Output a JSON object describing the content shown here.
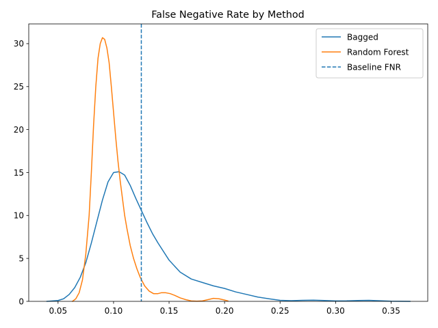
{
  "chart_data": {
    "type": "line",
    "title": "False Negative Rate by Method",
    "xlabel": "",
    "ylabel": "",
    "xlim": [
      0.0236,
      0.383
    ],
    "ylim": [
      0,
      32.3
    ],
    "xticks": [
      0.05,
      0.1,
      0.15,
      0.2,
      0.25,
      0.3,
      0.35
    ],
    "xtick_labels": [
      "0.05",
      "0.10",
      "0.15",
      "0.20",
      "0.25",
      "0.30",
      "0.35"
    ],
    "yticks": [
      0,
      5,
      10,
      15,
      20,
      25,
      30
    ],
    "ytick_labels": [
      "0",
      "5",
      "10",
      "15",
      "20",
      "25",
      "30"
    ],
    "grid": false,
    "legend_position": "top-right",
    "series": [
      {
        "name": "Bagged",
        "color": "#1f77b4",
        "style": "solid",
        "x": [
          0.04,
          0.05,
          0.055,
          0.06,
          0.065,
          0.07,
          0.075,
          0.08,
          0.085,
          0.09,
          0.095,
          0.1,
          0.105,
          0.11,
          0.115,
          0.12,
          0.125,
          0.13,
          0.135,
          0.14,
          0.15,
          0.16,
          0.17,
          0.18,
          0.19,
          0.2,
          0.21,
          0.22,
          0.23,
          0.24,
          0.25,
          0.26,
          0.27,
          0.28,
          0.29,
          0.3,
          0.31,
          0.32,
          0.33,
          0.34,
          0.35,
          0.367
        ],
        "y": [
          0.0,
          0.1,
          0.3,
          0.8,
          1.6,
          2.8,
          4.5,
          6.8,
          9.3,
          11.8,
          13.9,
          15.0,
          15.1,
          14.7,
          13.5,
          12.0,
          10.6,
          9.2,
          7.9,
          6.8,
          4.8,
          3.4,
          2.6,
          2.2,
          1.8,
          1.5,
          1.1,
          0.8,
          0.5,
          0.3,
          0.12,
          0.08,
          0.12,
          0.14,
          0.1,
          0.05,
          0.06,
          0.1,
          0.12,
          0.07,
          0.02,
          0.0
        ]
      },
      {
        "name": "Random Forest",
        "color": "#ff7f0e",
        "style": "solid",
        "x": [
          0.063,
          0.066,
          0.069,
          0.072,
          0.075,
          0.078,
          0.08,
          0.082,
          0.084,
          0.086,
          0.088,
          0.09,
          0.092,
          0.094,
          0.096,
          0.098,
          0.1,
          0.102,
          0.104,
          0.106,
          0.108,
          0.11,
          0.112,
          0.115,
          0.118,
          0.121,
          0.124,
          0.128,
          0.132,
          0.136,
          0.14,
          0.143,
          0.147,
          0.151,
          0.155,
          0.16,
          0.165,
          0.17,
          0.175,
          0.18,
          0.185,
          0.19,
          0.195,
          0.2,
          0.203
        ],
        "y": [
          0.0,
          0.3,
          1.0,
          2.5,
          5.5,
          10.0,
          15.0,
          20.5,
          25.0,
          28.3,
          30.0,
          30.7,
          30.5,
          29.5,
          27.8,
          25.0,
          22.0,
          19.0,
          16.3,
          14.0,
          12.0,
          10.0,
          8.5,
          6.5,
          5.0,
          3.8,
          2.8,
          1.8,
          1.2,
          0.9,
          0.9,
          1.0,
          1.0,
          0.9,
          0.7,
          0.4,
          0.2,
          0.05,
          0.02,
          0.05,
          0.2,
          0.35,
          0.3,
          0.15,
          0.05
        ]
      }
    ],
    "reference_lines": [
      {
        "name": "Baseline FNR",
        "orientation": "vertical",
        "x": 0.125,
        "color": "#1f77b4",
        "style": "dashed"
      }
    ]
  }
}
